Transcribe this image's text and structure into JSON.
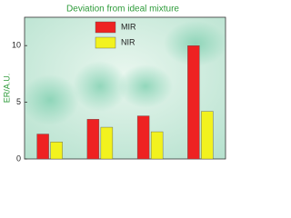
{
  "chart_data": {
    "type": "bar",
    "title": "Deviation from ideal mixture",
    "y_label": "ER/A.U.",
    "categories": [
      null,
      null,
      null,
      null
    ],
    "series": [
      {
        "name": "MIR",
        "color": "#ee2222",
        "values": [
          2.2,
          3.5,
          3.8,
          10.0
        ]
      },
      {
        "name": "NIR",
        "color": "#f2f21e",
        "values": [
          1.5,
          2.8,
          2.4,
          4.2
        ]
      }
    ],
    "ylim": [
      0,
      12.5
    ],
    "yticks": [
      0,
      5,
      10
    ],
    "legend": "top-center"
  }
}
